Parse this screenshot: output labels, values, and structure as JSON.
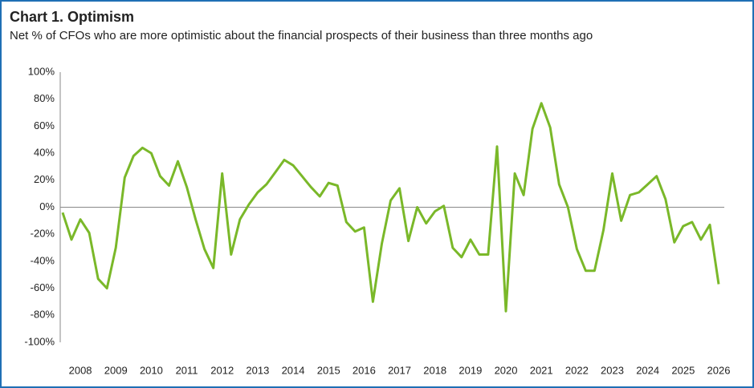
{
  "chart_data": {
    "type": "line",
    "title": "Chart 1. Optimism",
    "subtitle": "Net % of CFOs who are more optimistic about the financial prospects of their business than three months ago",
    "x": [
      2007.5,
      2007.75,
      2008,
      2008.25,
      2008.5,
      2008.75,
      2009,
      2009.25,
      2009.5,
      2009.75,
      2010,
      2010.25,
      2010.5,
      2010.75,
      2011,
      2011.25,
      2011.5,
      2011.75,
      2012,
      2012.25,
      2012.5,
      2012.75,
      2013,
      2013.25,
      2013.5,
      2013.75,
      2014,
      2014.25,
      2014.5,
      2014.75,
      2015,
      2015.25,
      2015.5,
      2015.75,
      2016,
      2016.25,
      2016.5,
      2016.75,
      2017,
      2017.25,
      2017.5,
      2017.75,
      2018,
      2018.25,
      2018.5,
      2018.75,
      2019,
      2019.25,
      2019.5,
      2019.75,
      2020,
      2020.25,
      2020.5,
      2020.75,
      2021,
      2021.25,
      2021.5,
      2021.75,
      2022,
      2022.25,
      2022.5,
      2022.75,
      2023,
      2023.25,
      2023.5,
      2023.75,
      2024,
      2024.25,
      2024.5,
      2024.75,
      2025,
      2025.25,
      2025.5,
      2025.75,
      2026
    ],
    "series": [
      {
        "name": "Optimism",
        "color": "#7ab829",
        "values": [
          -4,
          -24,
          -9,
          -19,
          -53,
          -60,
          -30,
          22,
          38,
          44,
          40,
          23,
          16,
          34,
          15,
          -9,
          -31,
          -45,
          25,
          -35,
          -9,
          2,
          11,
          17,
          26,
          35,
          31,
          23,
          15,
          8,
          18,
          16,
          -11,
          -18,
          -15,
          -70,
          -27,
          5,
          14,
          -25,
          0,
          -12,
          -3,
          1,
          -30,
          -37,
          -24,
          -35,
          -35,
          45,
          -77,
          25,
          9,
          58,
          77,
          59,
          17,
          0,
          -31,
          -47,
          -47,
          -17,
          25,
          -10,
          9,
          11,
          17,
          23,
          6,
          -26,
          -14,
          -11,
          -24,
          -13,
          -57
        ]
      }
    ],
    "xlim": [
      2007.5,
      2026
    ],
    "xticks": [
      2008,
      2009,
      2010,
      2011,
      2012,
      2013,
      2014,
      2015,
      2016,
      2017,
      2018,
      2019,
      2020,
      2021,
      2022,
      2023,
      2024,
      2025,
      2026
    ],
    "ylim": [
      -100,
      100
    ],
    "yticks": [
      {
        "value": -100,
        "label": "-100%"
      },
      {
        "value": -80,
        "label": "-80%"
      },
      {
        "value": -60,
        "label": "-60%"
      },
      {
        "value": -40,
        "label": "-40%"
      },
      {
        "value": -20,
        "label": "-20%"
      },
      {
        "value": 0,
        "label": "0%"
      },
      {
        "value": 20,
        "label": "20%"
      },
      {
        "value": 40,
        "label": "40%"
      },
      {
        "value": 60,
        "label": "60%"
      },
      {
        "value": 80,
        "label": "80%"
      },
      {
        "value": 100,
        "label": "100%"
      }
    ]
  }
}
